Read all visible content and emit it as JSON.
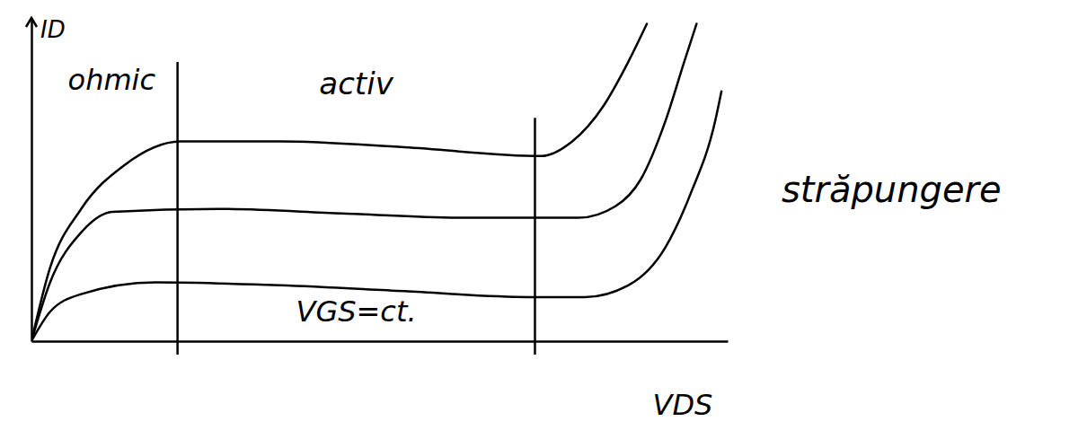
{
  "chart_data": {
    "type": "line",
    "x_label": "VDS",
    "y_label": "ID",
    "xlim": [
      0,
      11.2
    ],
    "ylim": [
      0,
      11
    ],
    "xticks": [],
    "yticks": [],
    "tick_labels": false,
    "boundaries": [
      2.35,
      8.1
    ],
    "regions": [
      "ohmic",
      "activ",
      "străpungere"
    ],
    "annotations": [
      "VGS=ct."
    ],
    "series": [
      {
        "color": "#000000",
        "x": [
          0,
          0.3,
          0.8,
          1.5,
          2.4,
          4,
          6,
          8.2,
          8.7,
          9.2,
          9.6,
          9.9
        ],
        "values": [
          0,
          2.5,
          4.5,
          6.0,
          6.8,
          6.8,
          6.6,
          6.3,
          6.8,
          8.0,
          9.5,
          10.8
        ]
      },
      {
        "color": "#000000",
        "x": [
          0,
          0.3,
          0.8,
          1.3,
          3,
          5,
          7,
          8.8,
          9.4,
          9.8,
          10.2,
          10.5,
          10.7
        ],
        "values": [
          0,
          2.0,
          3.7,
          4.4,
          4.5,
          4.35,
          4.2,
          4.2,
          4.6,
          5.5,
          7.5,
          9.5,
          10.8
        ]
      },
      {
        "color": "#000000",
        "x": [
          0,
          0.3,
          0.8,
          2,
          4,
          6,
          8,
          8.9,
          9.6,
          10.2,
          10.6,
          11,
          11.1
        ],
        "values": [
          0,
          1.0,
          1.6,
          2.0,
          1.9,
          1.7,
          1.5,
          1.5,
          1.9,
          3.2,
          5.0,
          7.5,
          8.5
        ]
      }
    ]
  }
}
